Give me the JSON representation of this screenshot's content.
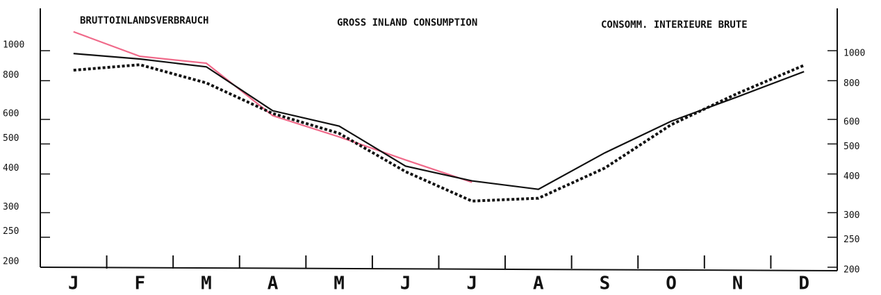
{
  "chart_data": {
    "type": "line",
    "log_scale": true,
    "titles": [
      "BRUTTOINLANDSVERBRAUCH",
      "GROSS INLAND CONSUMPTION",
      "CONSOMM. INTERIEURE BRUTE"
    ],
    "categories": [
      "J",
      "F",
      "M",
      "A",
      "M",
      "J",
      "J",
      "A",
      "S",
      "O",
      "N",
      "D"
    ],
    "series": [
      {
        "color": "#f06a8a",
        "style": "solid",
        "values": [
          1151,
          959,
          911,
          617,
          527,
          444,
          376,
          null,
          null,
          null,
          null,
          null
        ]
      },
      {
        "color": "#111111",
        "style": "solid",
        "values": [
          979,
          940,
          887,
          640,
          571,
          424,
          380,
          357,
          468,
          592,
          710,
          856
        ]
      },
      {
        "color": "#111111",
        "style": "dotted",
        "values": [
          865,
          901,
          787,
          627,
          541,
          407,
          327,
          334,
          418,
          577,
          728,
          897
        ]
      }
    ],
    "ylim": [
      200,
      1370
    ],
    "yticks": [
      200,
      250,
      300,
      400,
      500,
      600,
      800,
      1000
    ]
  }
}
